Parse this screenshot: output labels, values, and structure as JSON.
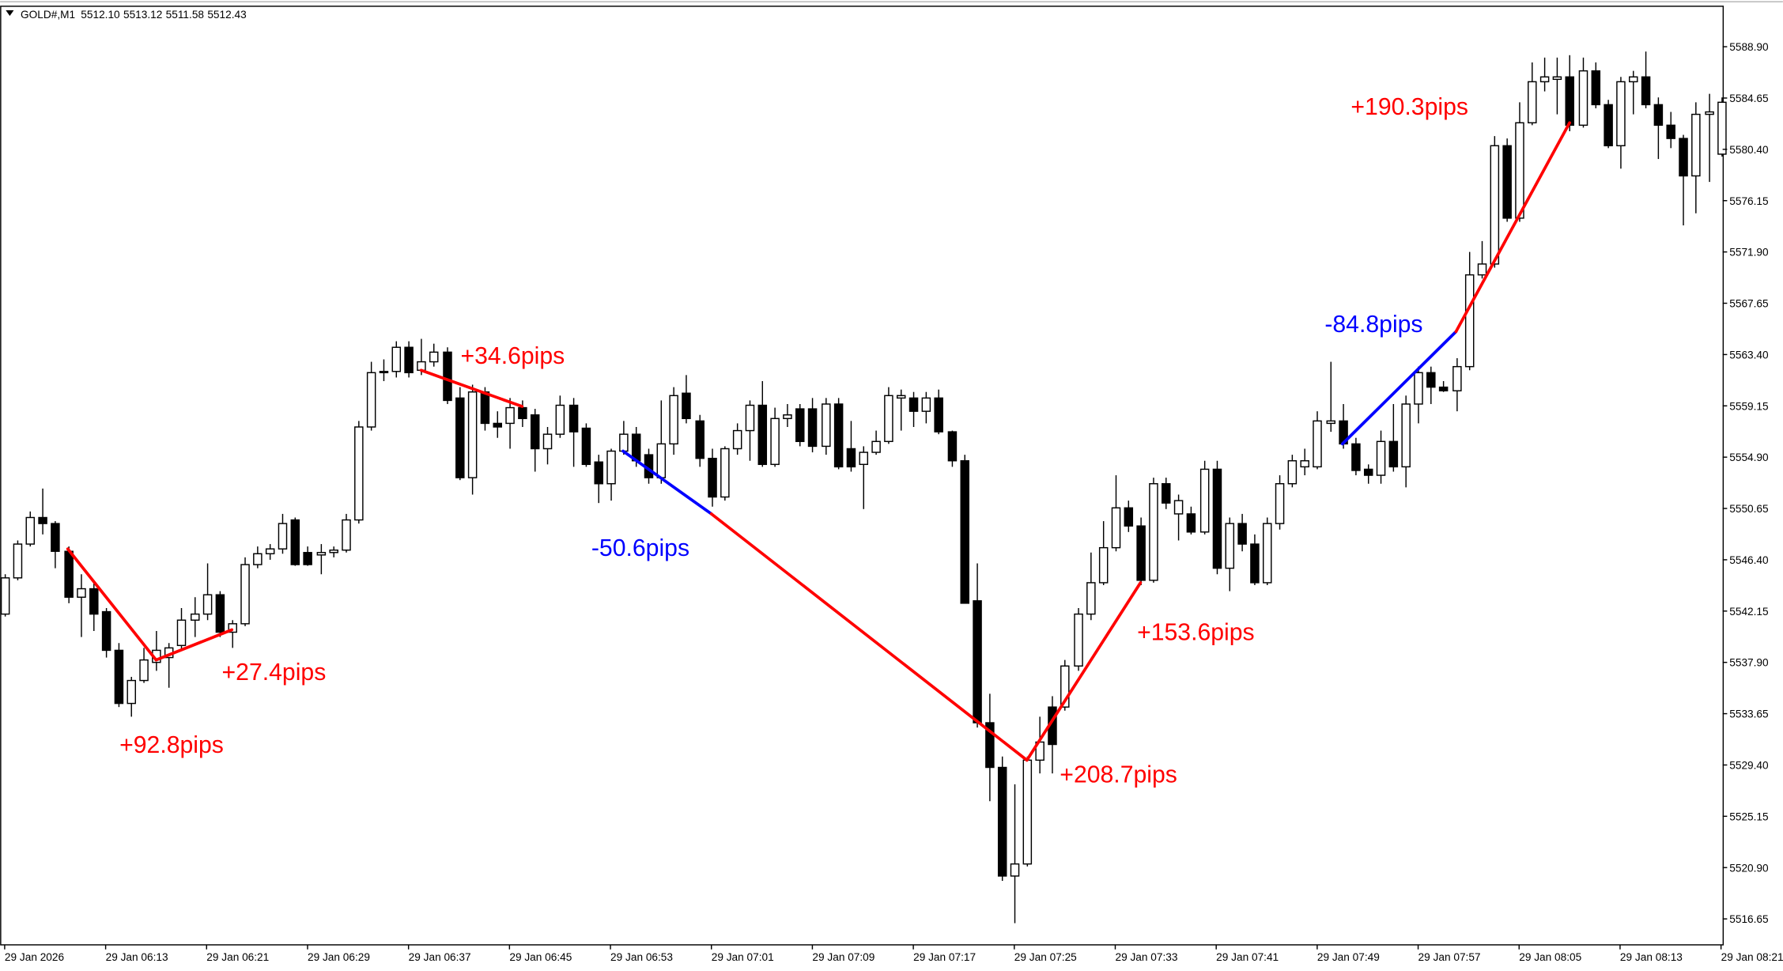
{
  "chart_data": {
    "type": "candlestick",
    "title": "GOLD#,M1",
    "readout": [
      "5512.10",
      "5513.12",
      "5511.58",
      "5512.43"
    ],
    "categories": [
      "29 Jan 2026",
      null,
      null,
      null,
      null,
      null,
      null,
      null,
      "29 Jan 06:13",
      null,
      null,
      null,
      null,
      null,
      null,
      null,
      "29 Jan 06:21",
      null,
      null,
      null,
      null,
      null,
      null,
      null,
      "29 Jan 06:29",
      null,
      null,
      null,
      null,
      null,
      null,
      null,
      "29 Jan 06:37",
      null,
      null,
      null,
      null,
      null,
      null,
      null,
      "29 Jan 06:45",
      null,
      null,
      null,
      null,
      null,
      null,
      null,
      "29 Jan 06:53",
      null,
      null,
      null,
      null,
      null,
      null,
      null,
      "29 Jan 07:01",
      null,
      null,
      null,
      null,
      null,
      null,
      null,
      "29 Jan 07:09",
      null,
      null,
      null,
      null,
      null,
      null,
      null,
      "29 Jan 07:17",
      null,
      null,
      null,
      null,
      null,
      null,
      null,
      "29 Jan 07:25",
      null,
      null,
      null,
      null,
      null,
      null,
      null,
      "29 Jan 07:33",
      null,
      null,
      null,
      null,
      null,
      null,
      null,
      "29 Jan 07:41",
      null,
      null,
      null,
      null,
      null,
      null,
      null,
      "29 Jan 07:49",
      null,
      null,
      null,
      null,
      null,
      null,
      null,
      "29 Jan 07:57",
      null,
      null,
      null,
      null,
      null,
      null,
      null,
      "29 Jan 08:05",
      null,
      null,
      null,
      null,
      null,
      null,
      null,
      "29 Jan 08:13",
      null,
      null,
      null,
      null,
      null,
      null,
      null,
      "29 Jan 08:21"
    ],
    "open": [
      5541.9,
      5544.9,
      5547.7,
      5549.9,
      5549.4,
      5547.1,
      5543.3,
      5544.0,
      5542.1,
      5538.9,
      5534.5,
      5536.4,
      5537.9,
      5538.3,
      5539.3,
      5541.4,
      5541.9,
      5543.5,
      5540.4,
      5541.1,
      5546.0,
      5546.9,
      5547.3,
      5549.7,
      5547.0,
      5546.8,
      5547.0,
      5547.2,
      5549.7,
      5557.4,
      5561.9,
      5562.0,
      5564.0,
      5562.1,
      5562.8,
      5563.6,
      5559.8,
      5553.2,
      5560.3,
      5557.7,
      5557.7,
      5559.0,
      5558.4,
      5555.6,
      5556.8,
      5559.2,
      5557.3,
      5554.5,
      5552.7,
      5555.4,
      5556.8,
      5555.1,
      5553.2,
      5556.0,
      5560.2,
      5557.9,
      5554.8,
      5551.6,
      5555.6,
      5557.1,
      5559.2,
      5554.3,
      5558.1,
      5558.9,
      5558.9,
      5555.8,
      5559.3,
      5555.6,
      5554.3,
      5555.3,
      5556.2,
      5559.8,
      5559.8,
      5558.7,
      5559.8,
      5557.0,
      5554.6,
      5543.0,
      5532.9,
      5529.2,
      5520.2,
      5521.2,
      5529.8,
      5534.2,
      5534.2,
      5537.6,
      5541.9,
      5544.5,
      5547.4,
      5550.7,
      5549.2,
      5544.7,
      5552.7,
      5550.2,
      5550.2,
      5548.7,
      5553.9,
      5545.7,
      5549.4,
      5547.7,
      5544.5,
      5549.4,
      5552.7,
      5554.1,
      5554.1,
      5557.7,
      5557.9,
      5556.0,
      5553.9,
      5553.4,
      5556.2,
      5554.1,
      5559.3,
      5561.9,
      5560.7,
      5560.4,
      5562.4,
      5570.0,
      5570.9,
      5580.7,
      5574.7,
      5582.6,
      5586.0,
      5586.2,
      5586.4,
      5582.4,
      5586.9,
      5584.1,
      5580.7,
      5586.0,
      5586.4,
      5584.1,
      5582.4,
      5581.3,
      5578.2,
      5583.3,
      5580.0
    ],
    "high": [
      5545.2,
      5548.0,
      5550.4,
      5552.3,
      5549.6,
      5547.5,
      5545.2,
      5544.7,
      5542.4,
      5539.5,
      5536.7,
      5539.1,
      5540.5,
      5539.5,
      5542.4,
      5543.3,
      5546.1,
      5543.8,
      5541.4,
      5546.6,
      5547.5,
      5547.7,
      5550.2,
      5549.9,
      5547.5,
      5547.7,
      5547.5,
      5550.2,
      5557.9,
      5562.8,
      5563.0,
      5564.5,
      5564.5,
      5564.7,
      5564.3,
      5564.0,
      5560.7,
      5560.9,
      5560.7,
      5558.7,
      5559.8,
      5559.6,
      5558.9,
      5557.4,
      5560.0,
      5559.8,
      5557.7,
      5555.1,
      5555.6,
      5557.9,
      5557.4,
      5555.6,
      5559.6,
      5560.7,
      5561.7,
      5558.4,
      5555.6,
      5555.8,
      5557.7,
      5559.6,
      5561.2,
      5559.0,
      5559.3,
      5559.3,
      5559.8,
      5559.8,
      5559.8,
      5557.9,
      5555.8,
      5557.1,
      5560.7,
      5560.5,
      5560.3,
      5560.3,
      5560.5,
      5557.1,
      5555.1,
      5546.1,
      5535.3,
      5530.1,
      5527.8,
      5530.1,
      5533.4,
      5535.1,
      5538.1,
      5542.4,
      5547.0,
      5549.6,
      5553.4,
      5551.3,
      5549.9,
      5553.2,
      5553.2,
      5551.8,
      5550.8,
      5554.6,
      5554.6,
      5549.9,
      5550.2,
      5548.5,
      5549.9,
      5553.4,
      5555.1,
      5555.6,
      5558.7,
      5562.8,
      5559.3,
      5556.5,
      5554.3,
      5557.1,
      5559.3,
      5560.0,
      5562.4,
      5562.4,
      5561.2,
      5563.1,
      5571.9,
      5572.8,
      5581.5,
      5581.3,
      5584.3,
      5587.6,
      5588.0,
      5588.0,
      5588.2,
      5588.0,
      5587.6,
      5584.5,
      5586.4,
      5586.9,
      5588.5,
      5584.7,
      5583.5,
      5581.6,
      5584.3,
      5585.0,
      5584.7
    ],
    "low": [
      5541.7,
      5544.7,
      5547.5,
      5548.5,
      5545.7,
      5542.8,
      5540.0,
      5540.5,
      5538.3,
      5534.2,
      5533.4,
      5536.2,
      5537.2,
      5535.8,
      5538.9,
      5540.0,
      5541.4,
      5540.0,
      5539.1,
      5540.9,
      5545.7,
      5546.4,
      5546.9,
      5545.9,
      5545.9,
      5545.2,
      5546.6,
      5547.0,
      5549.4,
      5557.1,
      5561.2,
      5561.5,
      5561.5,
      5561.7,
      5562.4,
      5559.3,
      5553.0,
      5551.8,
      5557.1,
      5556.5,
      5555.6,
      5557.4,
      5553.7,
      5554.3,
      5556.5,
      5554.1,
      5554.1,
      5551.1,
      5551.3,
      5555.1,
      5554.1,
      5552.7,
      5552.7,
      5555.1,
      5557.7,
      5554.1,
      5550.8,
      5551.3,
      5555.1,
      5554.6,
      5554.1,
      5554.1,
      5557.4,
      5555.8,
      5555.3,
      5555.1,
      5553.9,
      5553.7,
      5550.6,
      5555.1,
      5556.0,
      5557.1,
      5557.4,
      5557.7,
      5556.8,
      5554.1,
      5542.8,
      5532.5,
      5526.4,
      5519.8,
      5516.3,
      5521.0,
      5528.7,
      5528.7,
      5533.9,
      5537.2,
      5541.4,
      5544.3,
      5547.1,
      5548.7,
      5544.3,
      5544.5,
      5550.6,
      5548.0,
      5548.5,
      5548.5,
      5545.2,
      5543.8,
      5547.1,
      5544.3,
      5544.3,
      5548.9,
      5552.4,
      5553.4,
      5553.9,
      5557.0,
      5555.6,
      5553.4,
      5552.7,
      5552.7,
      5553.7,
      5552.4,
      5557.7,
      5559.3,
      5560.3,
      5558.7,
      5562.1,
      5569.7,
      5570.6,
      5574.4,
      5574.4,
      5582.4,
      5585.2,
      5583.3,
      5581.9,
      5582.2,
      5583.8,
      5580.5,
      5578.8,
      5583.3,
      5583.8,
      5579.6,
      5580.5,
      5574.1,
      5575.1,
      5577.7,
      5579.8
    ],
    "close": [
      5544.9,
      5547.7,
      5549.9,
      5549.4,
      5547.1,
      5543.3,
      5544.0,
      5541.9,
      5538.9,
      5534.5,
      5536.4,
      5538.1,
      5538.9,
      5539.1,
      5541.4,
      5541.9,
      5543.5,
      5540.4,
      5541.1,
      5546.0,
      5546.9,
      5547.3,
      5549.4,
      5546.0,
      5546.0,
      5547.0,
      5547.2,
      5549.7,
      5557.4,
      5561.9,
      5562.0,
      5564.0,
      5561.9,
      5562.8,
      5563.6,
      5559.6,
      5553.2,
      5560.3,
      5557.7,
      5557.4,
      5559.0,
      5558.1,
      5555.6,
      5556.8,
      5559.2,
      5557.0,
      5554.3,
      5552.7,
      5555.4,
      5556.8,
      5554.6,
      5553.2,
      5556.0,
      5560.0,
      5558.1,
      5554.8,
      5551.6,
      5555.6,
      5557.1,
      5559.2,
      5554.3,
      5558.1,
      5558.4,
      5556.2,
      5555.8,
      5559.3,
      5554.1,
      5554.1,
      5555.3,
      5556.2,
      5560.0,
      5560.0,
      5558.7,
      5559.8,
      5557.0,
      5554.6,
      5542.8,
      5532.9,
      5529.2,
      5520.2,
      5521.2,
      5529.8,
      5531.3,
      5531.1,
      5537.6,
      5541.9,
      5544.5,
      5547.4,
      5550.7,
      5549.2,
      5544.7,
      5552.7,
      5551.1,
      5551.3,
      5548.7,
      5553.9,
      5545.7,
      5549.4,
      5547.7,
      5544.5,
      5549.4,
      5552.7,
      5554.6,
      5554.6,
      5557.9,
      5557.9,
      5556.0,
      5553.8,
      5553.4,
      5556.2,
      5554.1,
      5559.3,
      5561.9,
      5560.7,
      5560.4,
      5562.4,
      5570.0,
      5570.9,
      5580.7,
      5574.7,
      5582.6,
      5586.0,
      5586.4,
      5586.4,
      5582.4,
      5586.9,
      5584.1,
      5580.7,
      5586.0,
      5586.4,
      5584.1,
      5582.4,
      5581.3,
      5578.2,
      5583.3,
      5583.5,
      5584.3
    ],
    "up_color": "#ffffff",
    "down_color": "#000000",
    "ylim": [
      5514.5,
      5592.3
    ],
    "yticks": [
      {
        "value": 5588.9,
        "label": "5588.90"
      },
      5584.65,
      {
        "value": 5580.4,
        "label": "5580.40"
      },
      5576.15,
      {
        "value": 5571.9,
        "label": "5571.90"
      },
      5567.65,
      {
        "value": 5563.4,
        "label": "5563.40"
      },
      5559.15,
      {
        "value": 5554.9,
        "label": "5554.90"
      },
      5550.65,
      {
        "value": 5546.4,
        "label": "5546.40"
      },
      5542.15,
      {
        "value": 5537.9,
        "label": "5537.90"
      },
      5533.65,
      {
        "value": 5529.4,
        "label": "5529.40"
      },
      5525.15,
      {
        "value": 5520.9,
        "label": "5520.90"
      },
      5516.65
    ],
    "grid": false,
    "trendlines": [
      {
        "label": "+92.8pips",
        "color": "#ff0000",
        "x": [
          5,
          12
        ],
        "y": [
          5547.3,
          5538.1
        ]
      },
      {
        "label": "+27.4pips",
        "color": "#ff0000",
        "x": [
          12,
          18
        ],
        "y": [
          5538.1,
          5540.6
        ]
      },
      {
        "label": "+34.6pips",
        "color": "#ff0000",
        "x": [
          33,
          41
        ],
        "y": [
          5562.1,
          5559.1
        ]
      },
      {
        "label": "-50.6pips",
        "color": "#0000ff",
        "x": [
          49,
          56
        ],
        "y": [
          5555.4,
          5550.2
        ]
      },
      {
        "label": "+208.7pips",
        "color": "#ff0000",
        "x": [
          56,
          81
        ],
        "y": [
          5550.2,
          5529.8
        ]
      },
      {
        "label": "+153.6pips",
        "color": "#ff0000",
        "x": [
          81,
          90
        ],
        "y": [
          5529.8,
          5544.5
        ]
      },
      {
        "label": "-84.8pips",
        "color": "#0000ff",
        "x": [
          106,
          115
        ],
        "y": [
          5556.0,
          5565.3
        ]
      },
      {
        "label": "+190.3pips",
        "color": "#ff0000",
        "x": [
          115,
          124
        ],
        "y": [
          5565.3,
          5582.6
        ]
      }
    ]
  }
}
